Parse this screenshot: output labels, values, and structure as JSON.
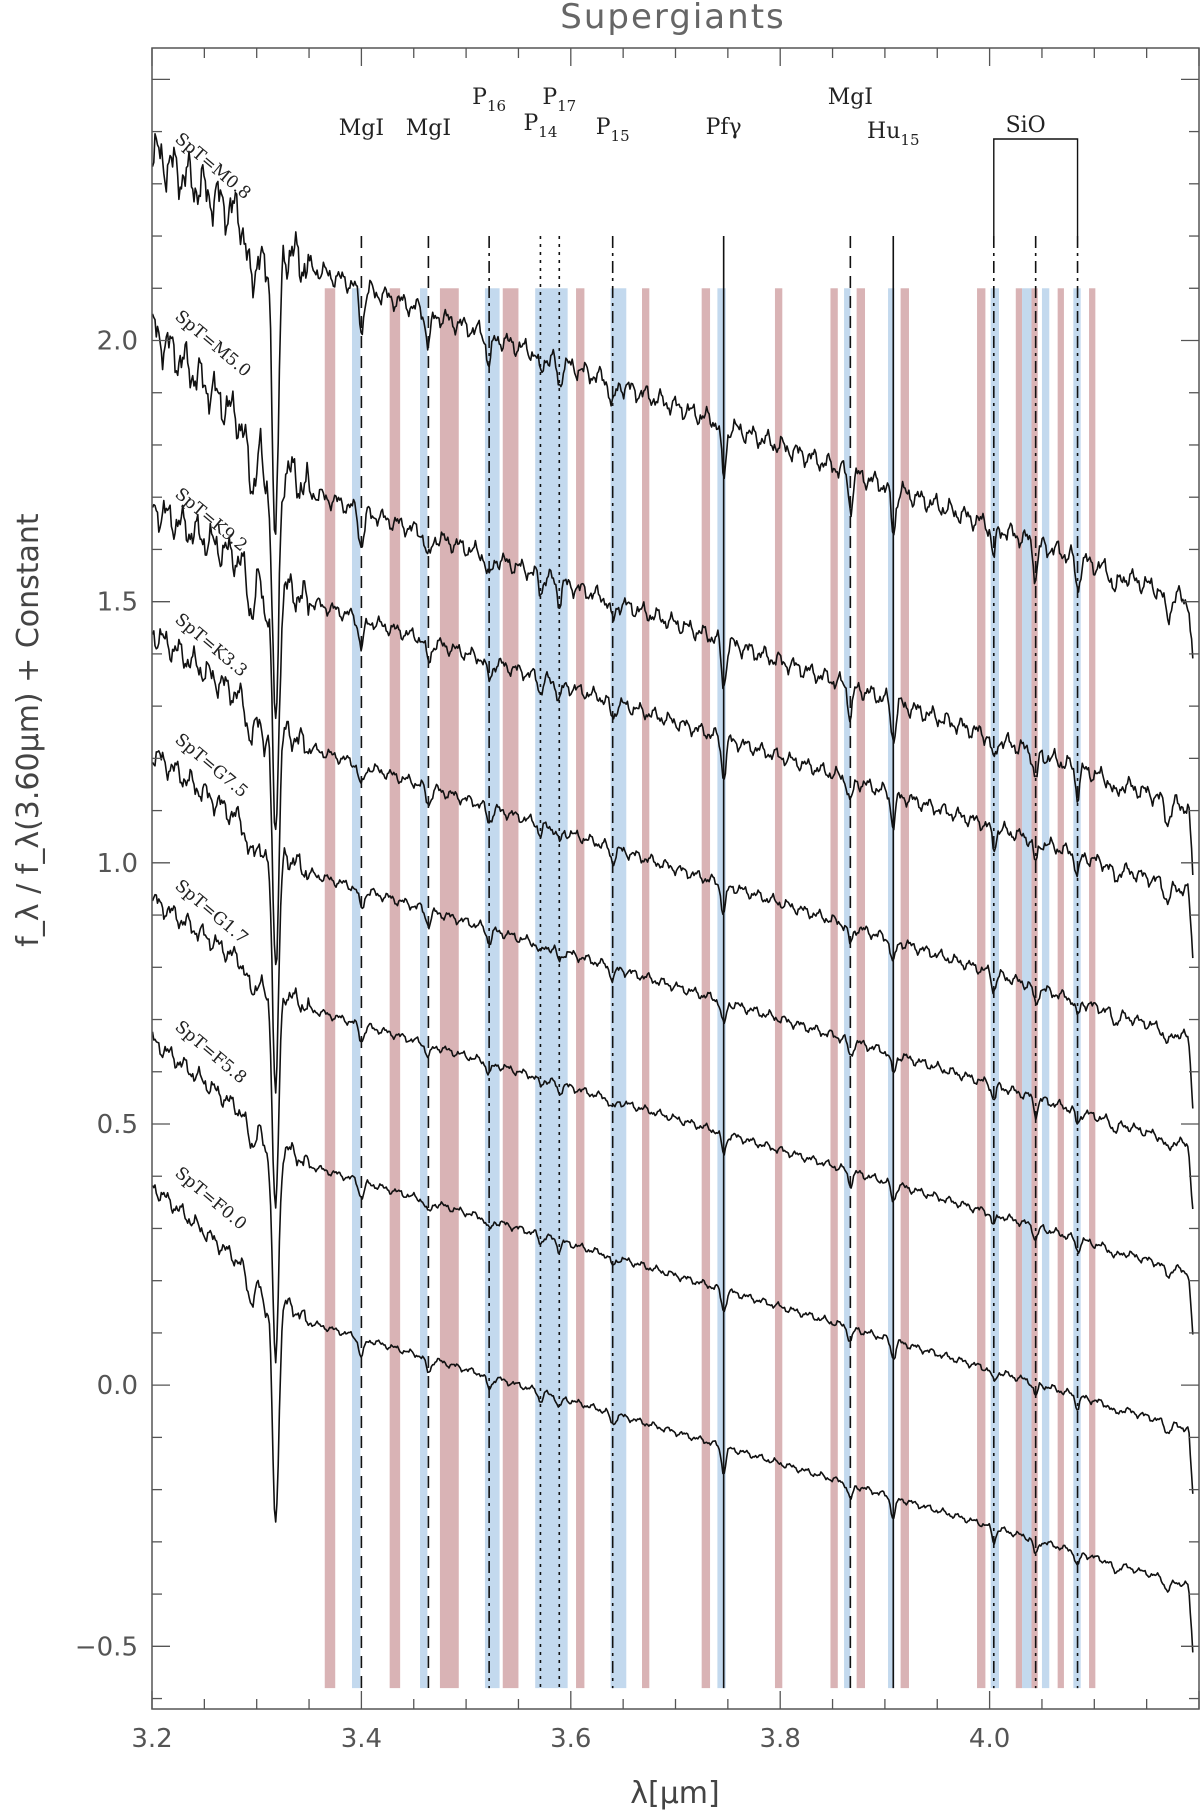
{
  "chart_data": {
    "type": "line",
    "title": "Supergiants",
    "xlabel": "λ[μm]",
    "ylabel": "f_λ / f_λ(3.60μm) + Constant",
    "xlim": [
      3.2,
      4.2
    ],
    "ylim": [
      -0.62,
      2.56
    ],
    "xticks": [
      3.2,
      3.4,
      3.6,
      3.8,
      4.0
    ],
    "xtick_labels": [
      "3.2",
      "3.4",
      "3.6",
      "3.8",
      "4.0"
    ],
    "yticks": [
      -0.5,
      0.0,
      0.5,
      1.0,
      1.5,
      2.0
    ],
    "ytick_labels": [
      "−0.5",
      "0.0",
      "0.5",
      "1.0",
      "1.5",
      "2.0"
    ],
    "grid": false,
    "bands": {
      "pink": [
        [
          3.365,
          3.375
        ],
        [
          3.427,
          3.437
        ],
        [
          3.475,
          3.493
        ],
        [
          3.535,
          3.55
        ],
        [
          3.605,
          3.613
        ],
        [
          3.668,
          3.675
        ],
        [
          3.725,
          3.733
        ],
        [
          3.795,
          3.802
        ],
        [
          3.848,
          3.855
        ],
        [
          3.873,
          3.881
        ],
        [
          3.915,
          3.923
        ],
        [
          3.988,
          3.996
        ],
        [
          4.025,
          4.031
        ],
        [
          4.04,
          4.046
        ],
        [
          4.065,
          4.071
        ],
        [
          4.095,
          4.101
        ]
      ],
      "blue": [
        [
          3.391,
          3.399
        ],
        [
          3.456,
          3.463
        ],
        [
          3.518,
          3.532
        ],
        [
          3.566,
          3.597
        ],
        [
          3.638,
          3.653
        ],
        [
          3.74,
          3.748
        ],
        [
          3.861,
          3.867
        ],
        [
          3.903,
          3.909
        ],
        [
          4.001,
          4.009
        ],
        [
          4.031,
          4.04
        ],
        [
          4.05,
          4.057
        ],
        [
          4.08,
          4.087
        ]
      ]
    },
    "lines": [
      {
        "name": "MgI",
        "x": 3.4,
        "style": "dash",
        "sub": ""
      },
      {
        "name": "MgI",
        "x": 3.464,
        "style": "dash",
        "sub": ""
      },
      {
        "name": "P",
        "x": 3.522,
        "style": "dashdot",
        "sub": "16"
      },
      {
        "name": "P",
        "x": 3.571,
        "style": "dot",
        "sub": "14"
      },
      {
        "name": "P",
        "x": 3.589,
        "style": "dot",
        "sub": "17"
      },
      {
        "name": "P",
        "x": 3.64,
        "style": "dashdot",
        "sub": "15"
      },
      {
        "name": "Pfγ",
        "x": 3.746,
        "style": "solid",
        "sub": ""
      },
      {
        "name": "MgI",
        "x": 3.867,
        "style": "dash",
        "sub": ""
      },
      {
        "name": "Hu",
        "x": 3.908,
        "style": "solid",
        "sub": "15"
      },
      {
        "name": "SiO",
        "x": 4.004,
        "style": "dashdot",
        "sub": ""
      },
      {
        "name": "",
        "x": 4.044,
        "style": "dashdot",
        "sub": ""
      },
      {
        "name": "",
        "x": 4.084,
        "style": "dashdot",
        "sub": ""
      }
    ],
    "series": [
      {
        "name": "SpT=M0.8",
        "start": 2.36,
        "anchor": 2.14,
        "slope": 0.76,
        "depth": 0.13,
        "noise": 0.025
      },
      {
        "name": "SpT=M5.0",
        "start": 2.02,
        "anchor": 1.71,
        "slope": 0.72,
        "depth": 0.11,
        "noise": 0.022
      },
      {
        "name": "SpT=K9.2",
        "start": 1.68,
        "anchor": 1.5,
        "slope": 0.66,
        "depth": 0.09,
        "noise": 0.018
      },
      {
        "name": "SpT=K3.3",
        "start": 1.44,
        "anchor": 1.22,
        "slope": 0.66,
        "depth": 0.07,
        "noise": 0.014
      },
      {
        "name": "SpT=G7.5",
        "start": 1.21,
        "anchor": 0.98,
        "slope": 0.62,
        "depth": 0.06,
        "noise": 0.012
      },
      {
        "name": "SpT=G1.7",
        "start": 0.93,
        "anchor": 0.72,
        "slope": 0.6,
        "depth": 0.05,
        "noise": 0.01
      },
      {
        "name": "SpT=F5.8",
        "start": 0.66,
        "anchor": 0.42,
        "slope": 0.6,
        "depth": 0.05,
        "noise": 0.009
      },
      {
        "name": "SpT=F0.0",
        "start": 0.38,
        "anchor": 0.12,
        "slope": 0.6,
        "depth": 0.06,
        "noise": 0.008
      }
    ]
  }
}
